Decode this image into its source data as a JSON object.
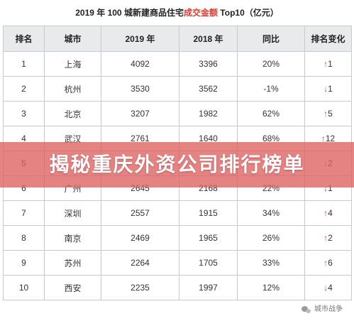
{
  "title": {
    "prefix": "2019 年 100 城新建商品住宅",
    "highlight": "成交金额",
    "suffix": " Top10（亿元）"
  },
  "headers": [
    "排名",
    "城市",
    "2019 年",
    "2018 年",
    "同比",
    "排名变化"
  ],
  "rows": [
    {
      "rank": "1",
      "city": "上海",
      "y2019": "4092",
      "y2018": "3396",
      "yoy": "20%",
      "change_arrow": "↑",
      "change": "1"
    },
    {
      "rank": "2",
      "city": "杭州",
      "y2019": "3530",
      "y2018": "3562",
      "yoy": "-1%",
      "change_arrow": "↓",
      "change": "1"
    },
    {
      "rank": "3",
      "city": "北京",
      "y2019": "3207",
      "y2018": "1982",
      "yoy": "62%",
      "change_arrow": "↑",
      "change": "5"
    },
    {
      "rank": "4",
      "city": "武汉",
      "y2019": "2761",
      "y2018": "1640",
      "yoy": "68%",
      "change_arrow": "↑",
      "change": "12"
    },
    {
      "rank": "5",
      "city": "",
      "y2019": "",
      "y2018": "",
      "yoy": "",
      "change_arrow": "↓",
      "change": "2"
    },
    {
      "rank": "6",
      "city": "广州",
      "y2019": "2645",
      "y2018": "2168",
      "yoy": "22%",
      "change_arrow": "↓",
      "change": "1"
    },
    {
      "rank": "7",
      "city": "深圳",
      "y2019": "2557",
      "y2018": "1915",
      "yoy": "34%",
      "change_arrow": "↑",
      "change": "4"
    },
    {
      "rank": "8",
      "city": "南京",
      "y2019": "2469",
      "y2018": "1965",
      "yoy": "26%",
      "change_arrow": "↑",
      "change": "2"
    },
    {
      "rank": "9",
      "city": "苏州",
      "y2019": "2264",
      "y2018": "1705",
      "yoy": "33%",
      "change_arrow": "↑",
      "change": "6"
    },
    {
      "rank": "10",
      "city": "西安",
      "y2019": "2235",
      "y2018": "1997",
      "yoy": "12%",
      "change_arrow": "↓",
      "change": "4"
    }
  ],
  "banner": {
    "text": "揭秘重庆外资公司排行榜单"
  },
  "watermark": {
    "text": "城市战争",
    "icon": "wechat-icon"
  },
  "colors": {
    "highlight": "#e03a2f",
    "header_bg": "#e8eaec",
    "banner_bg": "#de6060"
  }
}
